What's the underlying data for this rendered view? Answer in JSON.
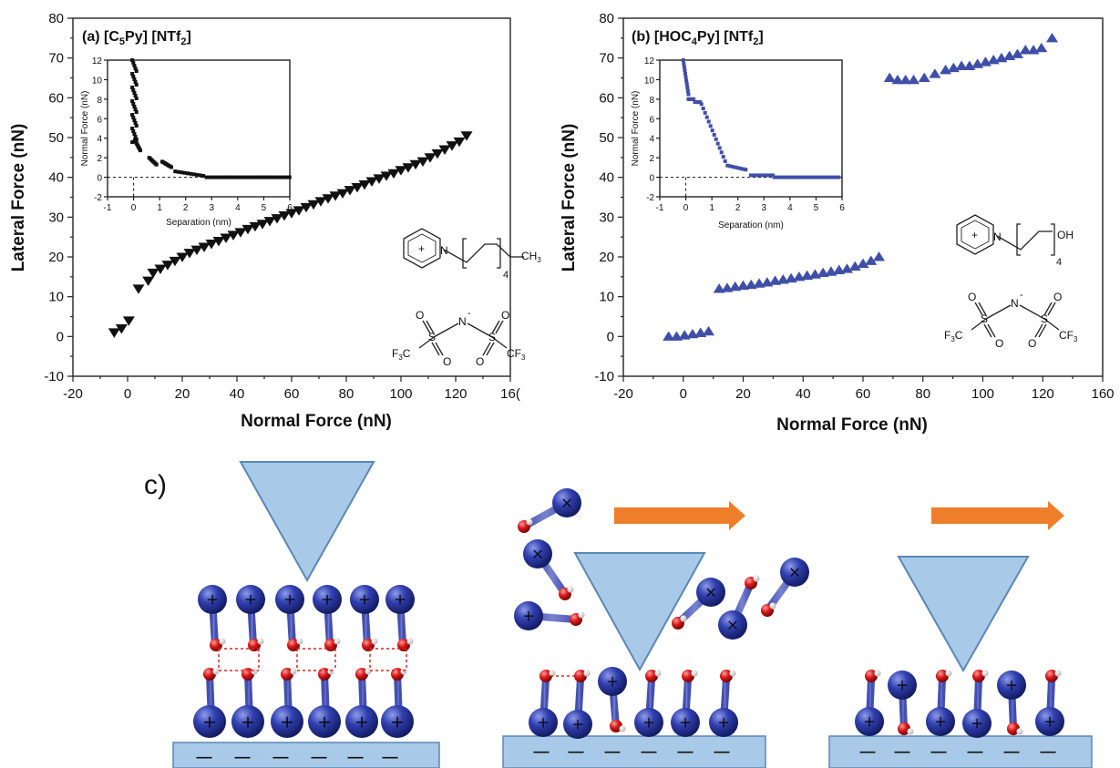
{
  "chart_data": [
    {
      "type": "scatter",
      "panel_label": "(a) [C",
      "panel_sub1": "5",
      "panel_mid": "Py] [NTf",
      "panel_sub2": "2",
      "panel_end": "]",
      "xlabel": "Normal Force (nN)",
      "ylabel": "Lateral Force (nN)",
      "xlim": [
        -20,
        160
      ],
      "ylim": [
        -10,
        80
      ],
      "xticks": [
        "-20",
        "0",
        "20",
        "40",
        "60",
        "80",
        "100",
        "120",
        "16("
      ],
      "yticks": [
        "-10",
        "0",
        "10",
        "20",
        "30",
        "40",
        "50",
        "60",
        "70",
        "80"
      ],
      "marker": "triangle-down",
      "color": "#111111",
      "x": [
        -3,
        0,
        3,
        7,
        11,
        13,
        16,
        19,
        22,
        25,
        28,
        31,
        34,
        37,
        40,
        43,
        46,
        49,
        52,
        55,
        58,
        61,
        64,
        67,
        70,
        73,
        76,
        79,
        82,
        85,
        88,
        91,
        94,
        97,
        100,
        103,
        106,
        109,
        112,
        115,
        118,
        121,
        124,
        127,
        130,
        133,
        136,
        139,
        142
      ],
      "y": [
        1,
        2,
        4,
        12,
        14,
        16,
        17,
        18,
        19,
        20,
        21,
        21.8,
        22.5,
        23.3,
        24,
        24.8,
        25.5,
        26.2,
        27,
        27.7,
        28.3,
        29,
        29.7,
        30.4,
        31,
        31.7,
        32.5,
        33.2,
        34,
        34.7,
        35.4,
        36,
        36.8,
        37.5,
        38.2,
        39,
        39.7,
        40.4,
        41,
        41.8,
        42.5,
        43.3,
        44,
        45,
        46,
        47,
        48,
        49,
        50.5
      ],
      "inset": {
        "xlabel": "Separation (nm)",
        "ylabel": "Normal Force (nN)",
        "xlim": [
          -1,
          6
        ],
        "ylim": [
          -2,
          12
        ],
        "xticks": [
          "-1",
          "0",
          "1",
          "2",
          "3",
          "4",
          "5",
          "6"
        ],
        "yticks": [
          "-2",
          "0",
          "2",
          "4",
          "6",
          "8",
          "10",
          "12"
        ]
      },
      "chem_labels": {
        "n1": "N",
        "ch3": "CH",
        "ch3_sub": "3",
        "rep": "4",
        "plus": "+",
        "s": "S",
        "o": "O",
        "n2": "N",
        "minus": "-",
        "f3c": "F",
        "f3c_sub": "3",
        "f3c_c": "C",
        "cf3": "CF",
        "cf3_sub": "3"
      }
    },
    {
      "type": "scatter",
      "panel_label": "(b) [HOC",
      "panel_sub1": "4",
      "panel_mid": "Py] [NTf",
      "panel_sub2": "2",
      "panel_end": "]",
      "xlabel": "Normal Force (nN)",
      "ylabel": "Lateral Force (nN)",
      "xlim": [
        -20,
        160
      ],
      "ylim": [
        -10,
        80
      ],
      "xticks": [
        "-20",
        "0",
        "20",
        "40",
        "60",
        "80",
        "100",
        "120",
        "160"
      ],
      "yticks": [
        "-10",
        "0",
        "10",
        "20",
        "30",
        "40",
        "50",
        "60",
        "70",
        "80"
      ],
      "marker": "triangle-up",
      "color": "#3f4fa8",
      "x": [
        -3,
        0,
        3,
        6,
        9,
        12,
        16,
        19,
        22,
        25,
        28,
        31,
        34,
        37,
        40,
        43,
        46,
        49,
        52,
        55,
        58,
        61,
        64,
        67,
        70,
        73,
        76,
        80,
        83,
        86,
        89,
        93,
        97,
        101,
        104,
        107,
        110,
        113,
        116,
        119,
        122,
        125,
        128,
        131,
        134,
        137,
        141
      ],
      "y": [
        0,
        0,
        0.3,
        0.6,
        0.9,
        1.3,
        12,
        12.2,
        12.5,
        12.8,
        13,
        13.3,
        13.6,
        14,
        14.3,
        14.6,
        15,
        15.3,
        15.6,
        16,
        16.3,
        16.7,
        17,
        17.6,
        18.3,
        19,
        20,
        65,
        64.5,
        64.5,
        64.5,
        65,
        66,
        67,
        67.5,
        68,
        68,
        68.5,
        69,
        69.5,
        70,
        70.5,
        71,
        72,
        72,
        72.5,
        75
      ],
      "inset": {
        "xlabel": "Separation (nm)",
        "ylabel": "Normal Force (nN)",
        "xlim": [
          -1,
          6
        ],
        "ylim": [
          -2,
          12
        ],
        "xticks": [
          "-1",
          "0",
          "1",
          "2",
          "3",
          "4",
          "5",
          "6"
        ],
        "yticks": [
          "-2",
          "0",
          "2",
          "4",
          "6",
          "8",
          "10",
          "12"
        ]
      },
      "chem_labels": {
        "n1": "N",
        "oh": "OH",
        "rep": "4",
        "plus": "+",
        "s": "S",
        "o": "O",
        "n2": "N",
        "minus": "-",
        "f3c": "F",
        "f3c_sub": "3",
        "f3c_c": "C",
        "cf3": "CF",
        "cf3_sub": "3"
      }
    }
  ],
  "schematic": {
    "panel_label": "c)",
    "colors": {
      "tip": "#a9c9e8",
      "tip_stroke": "#5a87b5",
      "cation": "#2f3fa0",
      "oxygen": "#d81818",
      "arrow": "#ef7e2a",
      "substrate": "#a9c9e8",
      "hbond": "#e02020"
    },
    "plus": "+",
    "cross": "×",
    "minus": "—"
  }
}
